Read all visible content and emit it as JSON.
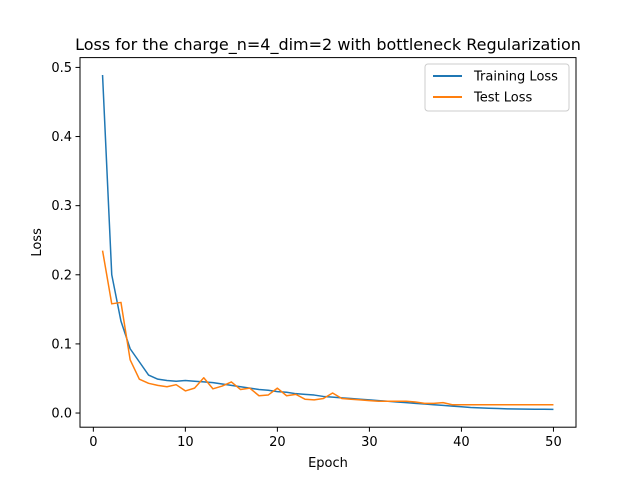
{
  "chart_data": {
    "type": "line",
    "title": "Loss for the charge_n=4_dim=2 with bottleneck Regularization",
    "xlabel": "Epoch",
    "ylabel": "Loss",
    "xlim": [
      -1.45,
      52.45
    ],
    "ylim": [
      -0.0205,
      0.5142
    ],
    "xticks": [
      0,
      10,
      20,
      30,
      40,
      50
    ],
    "yticks": [
      0.0,
      0.1,
      0.2,
      0.3,
      0.4,
      0.5
    ],
    "ytick_labels": [
      "0.0",
      "0.1",
      "0.2",
      "0.3",
      "0.4",
      "0.5"
    ],
    "legend_position": "upper right",
    "grid": false,
    "x": [
      1,
      2,
      3,
      4,
      5,
      6,
      7,
      8,
      9,
      10,
      11,
      12,
      13,
      14,
      15,
      16,
      17,
      18,
      19,
      20,
      21,
      22,
      23,
      24,
      25,
      26,
      27,
      28,
      29,
      30,
      31,
      32,
      33,
      34,
      35,
      36,
      37,
      38,
      39,
      40,
      41,
      42,
      43,
      44,
      45,
      46,
      47,
      48,
      49,
      50
    ],
    "series": [
      {
        "name": "Training Loss",
        "color": "#1f77b4",
        "values": [
          0.489,
          0.2,
          0.133,
          0.093,
          0.074,
          0.055,
          0.049,
          0.047,
          0.046,
          0.047,
          0.046,
          0.045,
          0.044,
          0.042,
          0.04,
          0.038,
          0.036,
          0.034,
          0.033,
          0.031,
          0.03,
          0.028,
          0.027,
          0.026,
          0.024,
          0.023,
          0.022,
          0.021,
          0.02,
          0.019,
          0.018,
          0.017,
          0.016,
          0.015,
          0.014,
          0.013,
          0.012,
          0.011,
          0.01,
          0.009,
          0.008,
          0.0075,
          0.007,
          0.0065,
          0.006,
          0.0058,
          0.0056,
          0.0055,
          0.0054,
          0.0053
        ]
      },
      {
        "name": "Test Loss",
        "color": "#ff7f0e",
        "values": [
          0.235,
          0.158,
          0.16,
          0.077,
          0.049,
          0.043,
          0.04,
          0.038,
          0.041,
          0.032,
          0.036,
          0.051,
          0.035,
          0.039,
          0.045,
          0.034,
          0.036,
          0.025,
          0.026,
          0.036,
          0.025,
          0.027,
          0.02,
          0.019,
          0.021,
          0.029,
          0.021,
          0.02,
          0.019,
          0.018,
          0.017,
          0.017,
          0.017,
          0.017,
          0.016,
          0.014,
          0.014,
          0.015,
          0.012,
          0.012,
          0.012,
          0.012,
          0.012,
          0.012,
          0.012,
          0.012,
          0.012,
          0.012,
          0.012,
          0.012
        ]
      }
    ]
  }
}
